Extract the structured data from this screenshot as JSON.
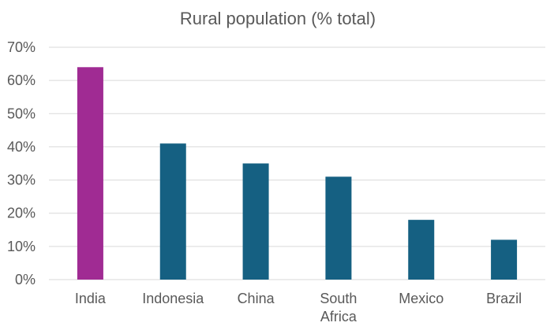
{
  "chart_data": {
    "type": "bar",
    "title": "Rural population (% total)",
    "categories": [
      "India",
      "Indonesia",
      "China",
      "South Africa",
      "Mexico",
      "Brazil"
    ],
    "values": [
      64,
      41,
      35,
      31,
      18,
      12
    ],
    "ylim": [
      0,
      70
    ],
    "yticks": [
      "0%",
      "10%",
      "20%",
      "30%",
      "40%",
      "50%",
      "60%",
      "70%"
    ],
    "grid": true,
    "legend": "none",
    "colors": {
      "highlight": "#A02B93",
      "default": "#156082",
      "grid": "#D9D9D9",
      "text": "#595959"
    },
    "highlight_category": "India"
  }
}
